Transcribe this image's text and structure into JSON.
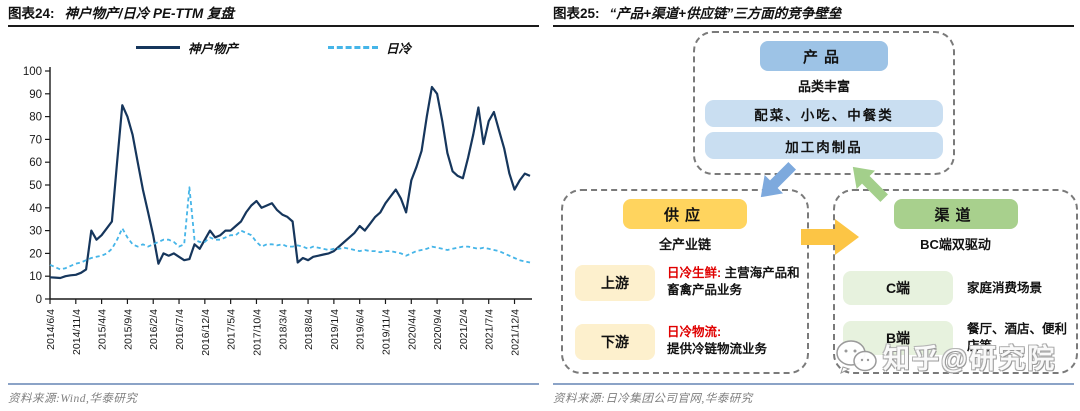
{
  "left_panel": {
    "figure_label": "图表24:",
    "title": "神户物产/日冷 PE-TTM 复盘",
    "source": "资料来源:Wind,华泰研究"
  },
  "right_panel": {
    "figure_label": "图表25:",
    "title": "“产品+渠道+供应链”三方面的竞争壁垒",
    "source": "资料来源:日冷集团公司官网,华泰研究",
    "watermark": "知乎@研究院",
    "diagram": {
      "product_group": {
        "header": "产品",
        "subtitle": "品类丰富",
        "items": [
          "配菜、小吃、中餐类",
          "加工肉制品"
        ]
      },
      "supply_group": {
        "header": "供应",
        "subtitle": "全产业链",
        "rows": [
          {
            "label": "上游",
            "highlight": "日冷生鲜:",
            "desc": "主营海产品和畜禽产品业务"
          },
          {
            "label": "下游",
            "highlight": "日冷物流:",
            "desc": "提供冷链物流业务"
          }
        ]
      },
      "channel_group": {
        "header": "渠道",
        "subtitle": "BC端双驱动",
        "rows": [
          {
            "label": "C端",
            "desc": "家庭消费场景"
          },
          {
            "label": "B端",
            "desc": "餐厅、酒店、便利店等"
          }
        ]
      },
      "colors": {
        "product_header_bg": "#9dc3e6",
        "product_item_bg": "#c9def1",
        "supply_header_bg": "#ffd45e",
        "supply_item_bg": "#fdf0cd",
        "channel_header_bg": "#a8d08d",
        "channel_item_bg": "#e7f2de",
        "arrow_blue": "#7da9dd",
        "arrow_green": "#a3cf8b",
        "arrow_yellow": "#fcc545",
        "highlight_red": "#e00000"
      }
    }
  },
  "chart_data": {
    "type": "line",
    "title": "神户物产/日冷 PE-TTM 复盘",
    "ylim": [
      0,
      100
    ],
    "y_ticks": [
      0,
      10,
      20,
      30,
      40,
      50,
      60,
      70,
      80,
      90,
      100
    ],
    "x_tick_labels": [
      "2014/6/4",
      "2014/11/4",
      "2015/4/4",
      "2015/9/4",
      "2016/2/4",
      "2016/7/4",
      "2016/12/4",
      "2017/5/4",
      "2017/10/4",
      "2018/3/4",
      "2018/8/4",
      "2019/1/4",
      "2019/6/4",
      "2019/11/4",
      "2020/4/4",
      "2020/9/4",
      "2021/2/4",
      "2021/7/4",
      "2021/12/4"
    ],
    "x_tick_every": 5,
    "x_unit": "month",
    "grid": false,
    "legend_position": "top",
    "series": [
      {
        "name": "神户物产",
        "color": "#16365c",
        "style": "solid",
        "values": [
          9.5,
          9.4,
          9.2,
          10,
          10.4,
          10.6,
          11.5,
          13,
          30,
          26,
          28,
          31,
          34,
          60,
          85,
          80,
          72,
          60,
          48,
          38,
          28,
          15.5,
          20,
          19,
          20,
          18.5,
          17,
          17.5,
          24,
          22,
          26,
          30,
          27,
          28,
          30,
          30,
          32,
          34,
          38,
          41,
          43,
          40,
          41,
          42,
          39,
          37,
          36,
          34,
          16,
          18,
          17,
          18.5,
          19,
          19.5,
          20,
          21,
          23,
          25,
          27,
          29,
          32,
          30,
          33,
          36,
          38,
          42,
          45,
          48,
          44,
          38,
          52,
          58,
          65,
          80,
          93,
          90,
          78,
          64,
          56,
          54,
          53,
          62,
          72,
          84,
          68,
          78,
          82,
          74,
          66,
          55,
          48,
          52,
          55,
          54
        ]
      },
      {
        "name": "日冷",
        "color": "#45b5e8",
        "style": "dashed",
        "values": [
          15,
          14,
          13,
          13.5,
          14.5,
          15.5,
          16,
          17,
          18,
          18.5,
          19,
          20,
          22,
          26,
          31,
          27,
          24,
          23,
          24,
          23,
          24,
          25,
          26,
          26,
          25,
          23,
          24,
          49,
          26,
          25,
          25,
          27,
          26,
          26,
          27,
          28,
          28,
          30,
          29,
          28,
          25,
          23,
          24,
          24,
          23.5,
          24,
          23,
          23,
          23.5,
          23,
          22,
          23,
          22.5,
          22,
          21.5,
          22,
          22,
          22.5,
          22,
          21.5,
          21,
          21.5,
          21,
          21,
          20.5,
          21,
          21,
          20.5,
          20,
          19,
          20,
          21,
          21.5,
          22,
          23,
          22.5,
          22,
          21.5,
          22,
          22.5,
          23,
          23,
          22.5,
          22,
          22.5,
          22,
          21.5,
          21,
          20,
          19,
          18,
          17,
          16.5,
          16
        ]
      }
    ]
  }
}
